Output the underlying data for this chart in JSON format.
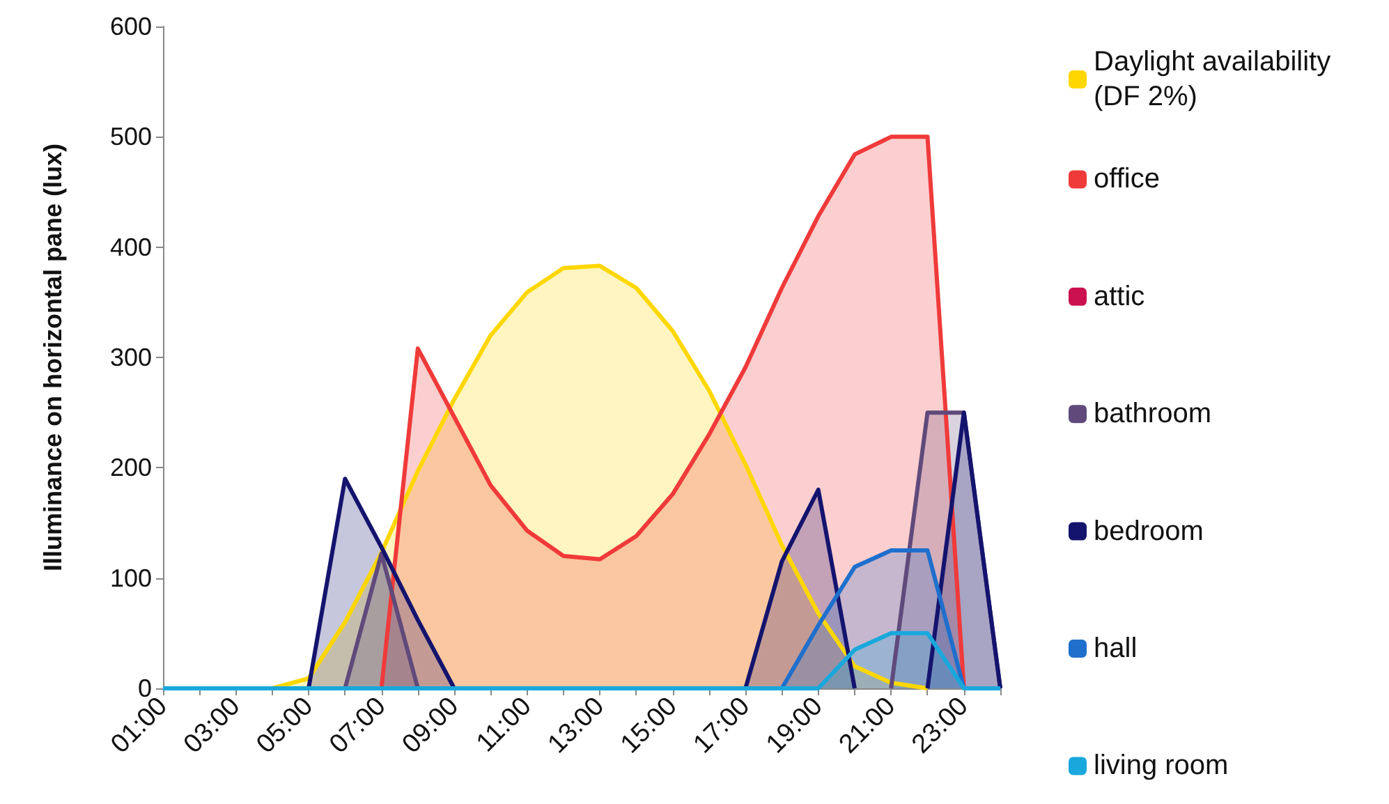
{
  "chart_data": {
    "type": "area",
    "ylabel": "Illuminance on horizontal pane (lux)",
    "categories": [
      "01:00",
      null,
      "03:00",
      null,
      "05:00",
      null,
      "07:00",
      null,
      "09:00",
      null,
      "11:00",
      null,
      "13:00",
      null,
      "15:00",
      null,
      "17:00",
      null,
      "19:00",
      null,
      "21:00",
      null,
      "23:00",
      null
    ],
    "series": [
      {
        "name": "Daylight availability (DF 2%)",
        "color": "#ffd700",
        "values": [
          null,
          null,
          null,
          0,
          9,
          60,
          123,
          197,
          262,
          320,
          359,
          381,
          383,
          363,
          324,
          270,
          203,
          130,
          68,
          20,
          5,
          0,
          null,
          null
        ]
      },
      {
        "name": "office",
        "color": "#f03a3a",
        "values": [
          null,
          null,
          null,
          null,
          null,
          null,
          0,
          308,
          246,
          184,
          143,
          120,
          117,
          138,
          176,
          230,
          291,
          363,
          428,
          484,
          500,
          500,
          0,
          null
        ]
      },
      {
        "name": "attic",
        "color": "#cc1150",
        "values": [
          null,
          null,
          null,
          null,
          null,
          null,
          null,
          null,
          null,
          null,
          null,
          null,
          null,
          null,
          null,
          null,
          null,
          null,
          null,
          null,
          null,
          null,
          null,
          null
        ]
      },
      {
        "name": "bathroom",
        "color": "#604a7b",
        "values": [
          null,
          null,
          null,
          null,
          null,
          0,
          122,
          0,
          null,
          null,
          null,
          null,
          null,
          null,
          null,
          null,
          null,
          null,
          null,
          null,
          0,
          250,
          250,
          0
        ]
      },
      {
        "name": "bedroom",
        "color": "#14146e",
        "values": [
          null,
          null,
          null,
          null,
          0,
          190,
          128,
          62,
          0,
          null,
          null,
          null,
          null,
          null,
          null,
          null,
          0,
          115,
          180,
          0,
          null,
          0,
          250,
          0
        ]
      },
      {
        "name": "hall",
        "color": "#1f6fcc",
        "values": [
          null,
          null,
          null,
          null,
          null,
          null,
          null,
          null,
          null,
          null,
          null,
          null,
          null,
          null,
          null,
          null,
          null,
          0,
          57,
          110,
          125,
          125,
          0,
          null
        ]
      },
      {
        "name": "living room",
        "color": "#1aa8dc",
        "values": [
          0,
          0,
          0,
          0,
          0,
          0,
          0,
          0,
          0,
          0,
          0,
          0,
          0,
          0,
          0,
          0,
          0,
          0,
          0,
          35,
          50,
          50,
          0,
          0
        ]
      }
    ],
    "ylim": [
      0,
      600
    ],
    "yticks": [
      0,
      100,
      200,
      300,
      400,
      500,
      600
    ],
    "grid": false,
    "legend": "right",
    "marker": "none"
  }
}
